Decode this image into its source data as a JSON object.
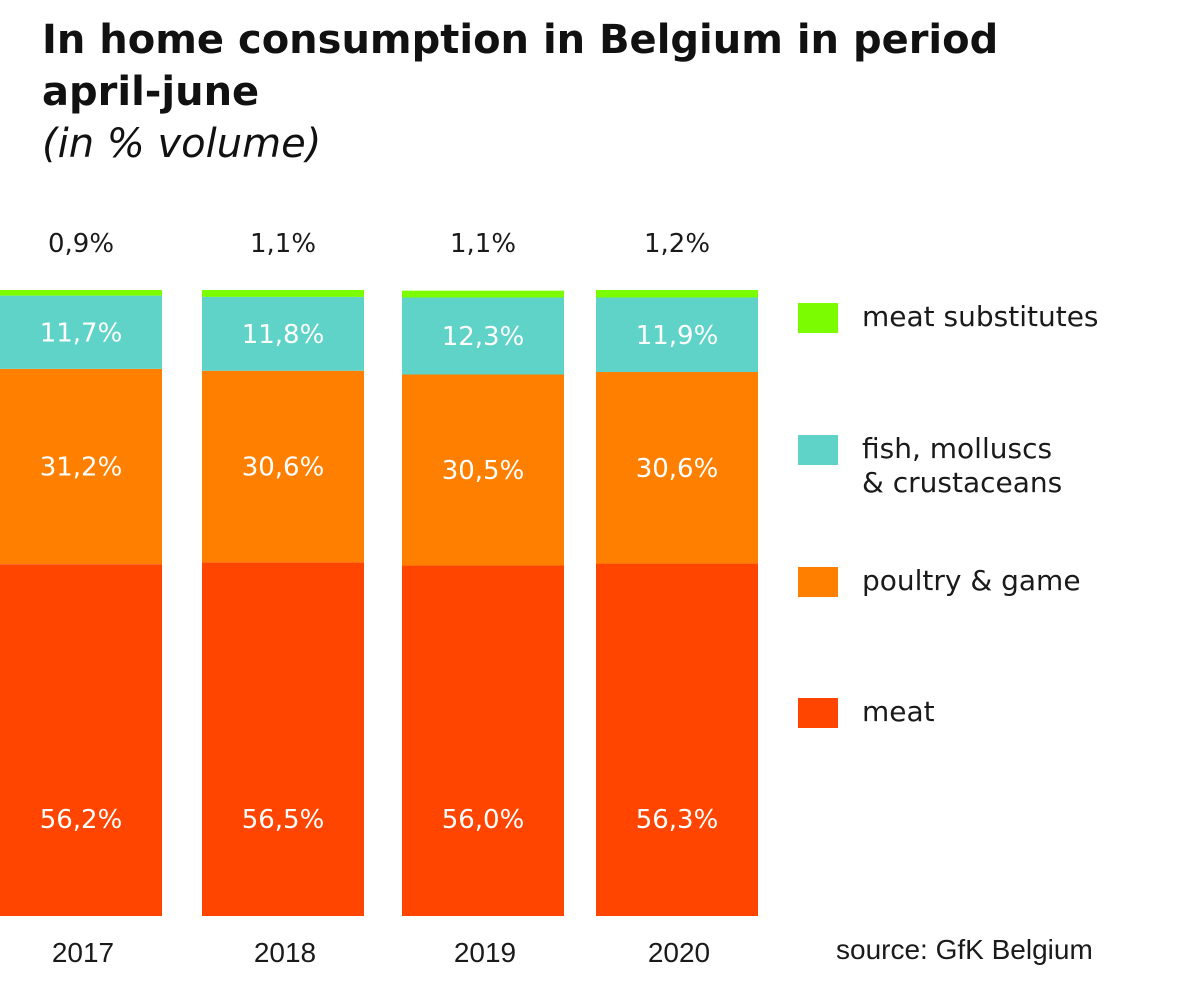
{
  "header": {
    "title": "In home consumption in Belgium in period april-june",
    "subtitle": "(in % volume)"
  },
  "chart_data": {
    "type": "bar",
    "stacked": true,
    "categories": [
      "2017",
      "2018",
      "2019",
      "2020"
    ],
    "series": [
      {
        "name": "meat",
        "color": "#ff4500",
        "values": [
          56.2,
          56.5,
          56.0,
          56.3
        ],
        "labels": [
          "56,2%",
          "56,5%",
          "56,0%",
          "56,3%"
        ]
      },
      {
        "name": "poultry & game",
        "color": "#ff8000",
        "values": [
          31.2,
          30.6,
          30.5,
          30.6
        ],
        "labels": [
          "31,2%",
          "30,6%",
          "30,5%",
          "30,6%"
        ]
      },
      {
        "name": "fish, molluscs\n& crustaceans",
        "color": "#5fd3c8",
        "values": [
          11.7,
          11.8,
          12.3,
          11.9
        ],
        "labels": [
          "11,7%",
          "11,8%",
          "12,3%",
          "11,9%"
        ]
      },
      {
        "name": "meat substitutes",
        "color": "#7cfc00",
        "values": [
          0.9,
          1.1,
          1.1,
          1.2
        ],
        "labels": [
          "0,9%",
          "1,1%",
          "1,1%",
          "1,2%"
        ]
      }
    ],
    "ylim": [
      0,
      100
    ],
    "grid": false,
    "legend_position": "right",
    "source": "source: GfK Belgium"
  }
}
